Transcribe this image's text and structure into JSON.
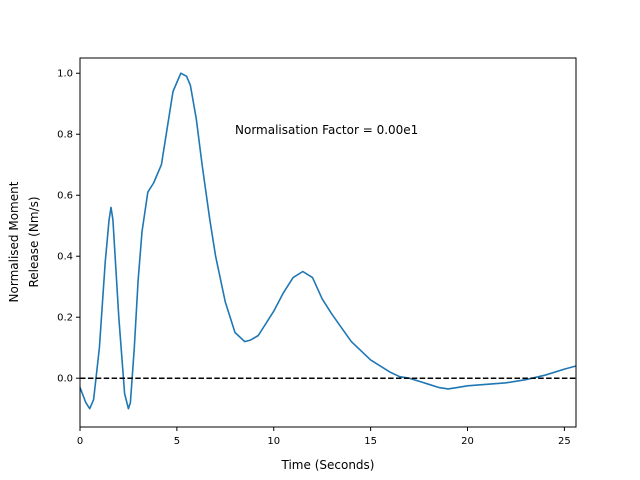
{
  "chart_data": {
    "type": "line",
    "title": "",
    "xlabel": "Time (Seconds)",
    "ylabel_lines": [
      "Normalised Moment",
      "Release (Nm/s)"
    ],
    "xlim": [
      0,
      25.6
    ],
    "ylim": [
      -0.16,
      1.05
    ],
    "xticks": [
      0,
      5,
      10,
      15,
      20,
      25
    ],
    "yticks": [
      0.0,
      0.2,
      0.4,
      0.6,
      0.8,
      1.0
    ],
    "xtick_labels": [
      "0",
      "5",
      "10",
      "15",
      "20",
      "25"
    ],
    "ytick_labels": [
      "0.0",
      "0.2",
      "0.4",
      "0.6",
      "0.8",
      "1.0"
    ],
    "annotation": "Normalisation Factor = 0.00e1",
    "grid": false,
    "series": [
      {
        "color": "#1f77b4",
        "style": "solid",
        "x": [
          0,
          0.3,
          0.5,
          0.7,
          1.0,
          1.3,
          1.5,
          1.6,
          1.7,
          2.0,
          2.3,
          2.5,
          2.6,
          2.8,
          3.0,
          3.2,
          3.5,
          3.8,
          4.2,
          4.5,
          4.8,
          5.2,
          5.5,
          5.7,
          6.0,
          6.3,
          6.7,
          7.0,
          7.5,
          8.0,
          8.5,
          8.8,
          9.2,
          10.0,
          10.5,
          11.0,
          11.5,
          12.0,
          12.5,
          13.0,
          14.0,
          15.0,
          16.0,
          16.5,
          17.0,
          17.5,
          18.0,
          18.5,
          19.0,
          19.5,
          20.0,
          21.0,
          22.0,
          23.0,
          24.0,
          25.0,
          25.6
        ],
        "y": [
          -0.03,
          -0.08,
          -0.1,
          -0.07,
          0.1,
          0.38,
          0.52,
          0.56,
          0.52,
          0.2,
          -0.05,
          -0.1,
          -0.08,
          0.1,
          0.32,
          0.48,
          0.61,
          0.64,
          0.7,
          0.82,
          0.94,
          1.0,
          0.99,
          0.96,
          0.85,
          0.7,
          0.52,
          0.4,
          0.25,
          0.15,
          0.12,
          0.125,
          0.14,
          0.22,
          0.28,
          0.33,
          0.35,
          0.33,
          0.26,
          0.21,
          0.12,
          0.06,
          0.02,
          0.005,
          0.0,
          -0.01,
          -0.02,
          -0.03,
          -0.035,
          -0.03,
          -0.025,
          -0.02,
          -0.015,
          -0.005,
          0.01,
          0.03,
          0.04
        ]
      },
      {
        "color": "#000000",
        "style": "dashed",
        "x": [
          0,
          25.6
        ],
        "y": [
          0,
          0
        ]
      }
    ]
  }
}
